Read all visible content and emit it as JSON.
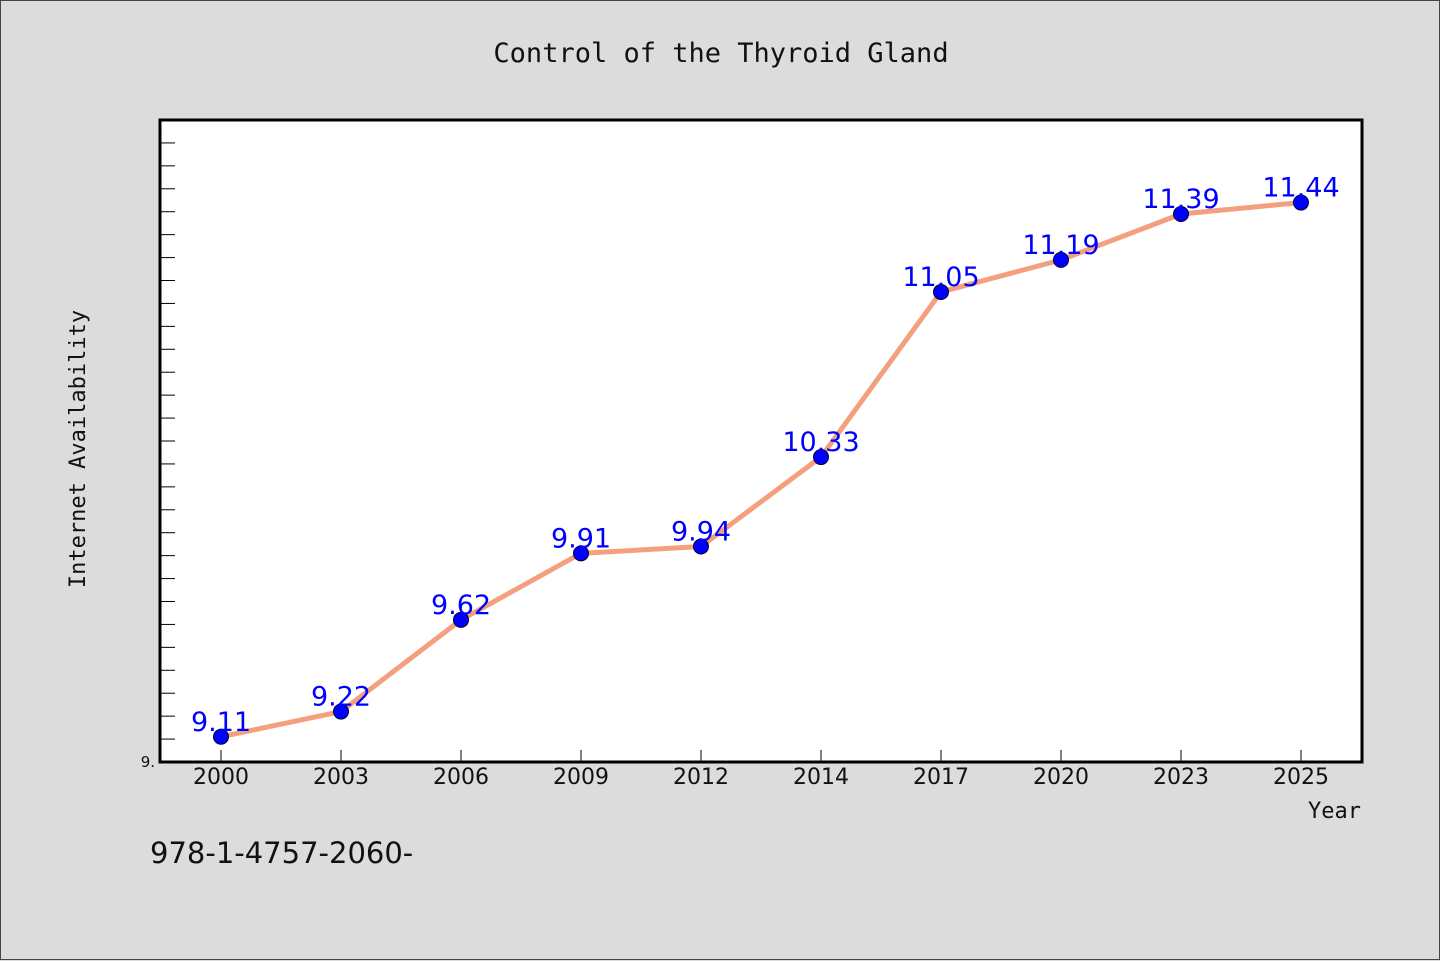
{
  "chart_data": {
    "type": "line",
    "title": "Control of the Thyroid Gland",
    "xlabel": "Year",
    "ylabel": "Internet Availability",
    "categories": [
      "2000",
      "2003",
      "2006",
      "2009",
      "2012",
      "2014",
      "2017",
      "2020",
      "2023",
      "2025"
    ],
    "series": [
      {
        "values": [
          9.11,
          9.22,
          9.62,
          9.91,
          9.94,
          10.33,
          11.05,
          11.19,
          11.39,
          11.44
        ],
        "labels": [
          "9.11",
          "9.22",
          "9.62",
          "9.91",
          "9.94",
          "10.33",
          "11.05",
          "11.19",
          "11.39",
          "11.44"
        ]
      }
    ],
    "ylim": [
      9.0,
      11.8
    ],
    "ytick_label": "9.",
    "grid": false,
    "line_color": "#f4a07e",
    "marker_color": "#0000ff",
    "label_color": "#0000ff"
  },
  "footer": {
    "text": "978-1-4757-2060-"
  }
}
